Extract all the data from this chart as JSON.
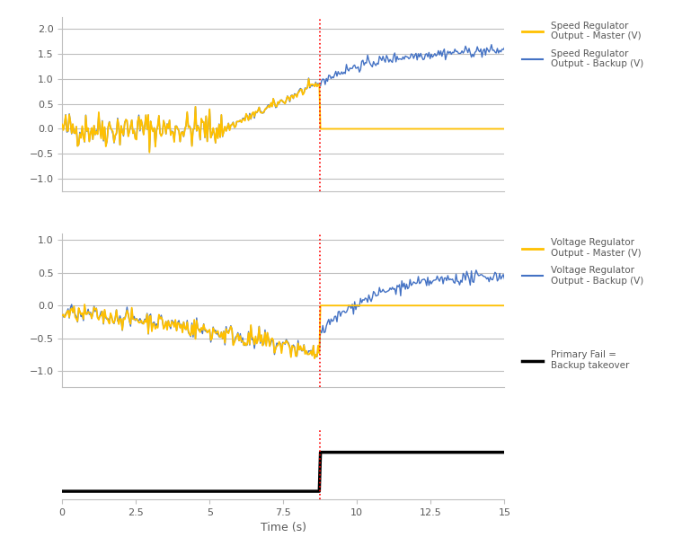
{
  "xlabel": "Time (s)",
  "xlim": [
    0,
    15
  ],
  "switchover_time": 8.75,
  "top_subplot": {
    "ylim": [
      -1.25,
      2.25
    ],
    "yticks": [
      -1,
      -0.5,
      0,
      0.5,
      1,
      1.5,
      2
    ],
    "legend1_label": "Speed Regulator\nOutput - Master (V)",
    "legend2_label": "Speed Regulator\nOutput - Backup (V)"
  },
  "mid_subplot": {
    "ylim": [
      -1.25,
      1.1
    ],
    "yticks": [
      -1,
      -0.5,
      0,
      0.5,
      1
    ],
    "legend1_label": "Voltage Regulator\nOutput - Master (V)",
    "legend2_label": "Voltage Regulator\nOutput - Backup (V)"
  },
  "bot_subplot": {
    "ylim": [
      -1.2,
      0.5
    ],
    "yticks": [],
    "legend_label": "Primary Fail =\nBackup takeover"
  },
  "colors": {
    "master": "#FFC000",
    "backup_speed": "#4472C4",
    "backup_voltage": "#4472C4",
    "primary_fail": "#000000",
    "red_line": "#FF0000",
    "grid": "#BFBFBF",
    "text": "#595959"
  },
  "seed": 42
}
